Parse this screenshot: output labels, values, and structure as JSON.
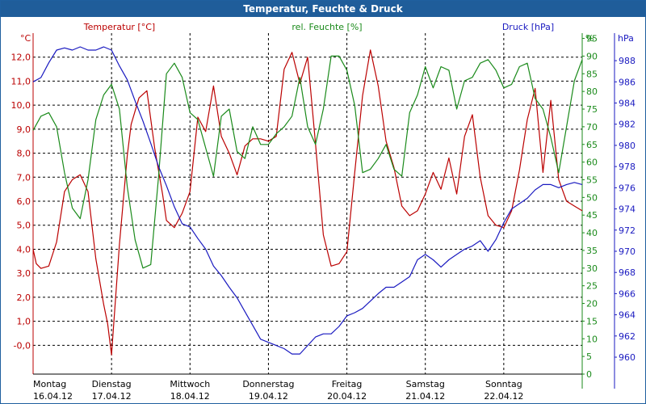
{
  "chart_data": {
    "type": "line",
    "title": "Temperatur, Feuchte & Druck",
    "axes": {
      "temperature": {
        "label": "Temperatur [°C]",
        "unit": "°C",
        "range": [
          -1.2,
          13.0
        ],
        "ticks": [
          "-0,0",
          "1,0",
          "2,0",
          "3,0",
          "4,0",
          "5,0",
          "6,0",
          "7,0",
          "8,0",
          "9,0",
          "10,0",
          "11,0",
          "12,0"
        ]
      },
      "humidity": {
        "label": "rel. Feuchte [%]",
        "unit": "%",
        "range": [
          0,
          96.5
        ],
        "ticks": [
          "0",
          "5",
          "10",
          "15",
          "20",
          "25",
          "30",
          "35",
          "40",
          "45",
          "50",
          "55",
          "60",
          "65",
          "70",
          "75",
          "80",
          "85",
          "90",
          "95"
        ]
      },
      "pressure": {
        "label": "Druck [hPa]",
        "unit": "hPa",
        "range": [
          958.4,
          990.6
        ],
        "ticks": [
          "960",
          "962",
          "964",
          "966",
          "968",
          "970",
          "972",
          "974",
          "976",
          "978",
          "980",
          "982",
          "984",
          "986",
          "988"
        ]
      }
    },
    "x_range": [
      0,
      7
    ],
    "x_labels": [
      {
        "day": "Montag",
        "date": "16.04.12"
      },
      {
        "day": "Dienstag",
        "date": "17.04.12"
      },
      {
        "day": "Mittwoch",
        "date": "18.04.12"
      },
      {
        "day": "Donnerstag",
        "date": "19.04.12"
      },
      {
        "day": "Freitag",
        "date": "20.04.12"
      },
      {
        "day": "Samstag",
        "date": "21.04.12"
      },
      {
        "day": "Sonntag",
        "date": "22.04.12"
      }
    ],
    "grid": true,
    "series": [
      {
        "name": "Temperatur",
        "axis": "temperature",
        "color": "#bb0000",
        "x": [
          0,
          0.04,
          0.1,
          0.2,
          0.3,
          0.4,
          0.5,
          0.6,
          0.7,
          0.8,
          0.9,
          0.95,
          1.0,
          1.1,
          1.2,
          1.25,
          1.35,
          1.45,
          1.55,
          1.65,
          1.7,
          1.8,
          1.9,
          2.0,
          2.1,
          2.2,
          2.3,
          2.4,
          2.5,
          2.6,
          2.7,
          2.8,
          2.9,
          3.0,
          3.1,
          3.2,
          3.3,
          3.4,
          3.5,
          3.6,
          3.7,
          3.8,
          3.9,
          4.0,
          4.1,
          4.2,
          4.3,
          4.4,
          4.5,
          4.6,
          4.7,
          4.8,
          4.9,
          5.0,
          5.1,
          5.2,
          5.3,
          5.4,
          5.5,
          5.6,
          5.7,
          5.8,
          5.9,
          6.0,
          6.1,
          6.2,
          6.3,
          6.4,
          6.5,
          6.6,
          6.7,
          6.8,
          6.9,
          7.0
        ],
        "values": [
          4.0,
          3.4,
          3.2,
          3.3,
          4.3,
          6.4,
          6.9,
          7.1,
          6.4,
          3.6,
          1.7,
          0.9,
          -0.4,
          4.2,
          7.9,
          9.2,
          10.3,
          10.6,
          8.2,
          6.3,
          5.2,
          4.9,
          5.5,
          6.4,
          9.5,
          8.9,
          10.8,
          8.7,
          8.0,
          7.1,
          8.3,
          8.6,
          8.6,
          8.5,
          8.7,
          11.5,
          12.2,
          10.9,
          12.0,
          8.4,
          4.6,
          3.3,
          3.4,
          3.9,
          7.2,
          10.4,
          12.3,
          10.8,
          8.5,
          7.4,
          5.8,
          5.4,
          5.6,
          6.3,
          7.2,
          6.5,
          7.8,
          6.3,
          8.7,
          9.6,
          7.0,
          5.4,
          5.0,
          4.9,
          5.6,
          7.3,
          9.4,
          10.7,
          7.2,
          10.2,
          6.9,
          6.0,
          5.8,
          5.6
        ]
      },
      {
        "name": "rel. Feuchte",
        "axis": "humidity",
        "color": "#1a8a1a",
        "x": [
          0,
          0.1,
          0.2,
          0.3,
          0.4,
          0.5,
          0.6,
          0.7,
          0.8,
          0.9,
          1.0,
          1.1,
          1.2,
          1.3,
          1.4,
          1.5,
          1.6,
          1.7,
          1.8,
          1.9,
          2.0,
          2.1,
          2.2,
          2.3,
          2.4,
          2.5,
          2.6,
          2.7,
          2.8,
          2.9,
          3.0,
          3.1,
          3.2,
          3.3,
          3.4,
          3.5,
          3.6,
          3.7,
          3.8,
          3.9,
          4.0,
          4.1,
          4.2,
          4.3,
          4.4,
          4.5,
          4.6,
          4.7,
          4.8,
          4.9,
          5.0,
          5.1,
          5.2,
          5.3,
          5.4,
          5.5,
          5.6,
          5.7,
          5.8,
          5.9,
          6.0,
          6.1,
          6.2,
          6.3,
          6.4,
          6.5,
          6.6,
          6.7,
          6.8,
          6.9,
          7.0
        ],
        "values": [
          69,
          73,
          74,
          70,
          57,
          47,
          44,
          55,
          72,
          79,
          82,
          75,
          53,
          38,
          30,
          31,
          56,
          85,
          88,
          84,
          74,
          72,
          64,
          56,
          73,
          75,
          63,
          61,
          70,
          65,
          65,
          68,
          70,
          73,
          84,
          70,
          65,
          75,
          90,
          90,
          86,
          76,
          57,
          58,
          61,
          65,
          58,
          56,
          74,
          79,
          87,
          81,
          87,
          86,
          75,
          83,
          84,
          88,
          89,
          86,
          81,
          82,
          87,
          88,
          78,
          75,
          67,
          57,
          70,
          83,
          89
        ]
      },
      {
        "name": "Druck",
        "axis": "pressure",
        "color": "#1a1ac0",
        "x": [
          0,
          0.1,
          0.2,
          0.3,
          0.4,
          0.5,
          0.6,
          0.7,
          0.8,
          0.9,
          1.0,
          1.1,
          1.2,
          1.3,
          1.4,
          1.5,
          1.6,
          1.7,
          1.8,
          1.9,
          2.0,
          2.1,
          2.2,
          2.3,
          2.4,
          2.5,
          2.6,
          2.7,
          2.8,
          2.9,
          3.0,
          3.1,
          3.2,
          3.3,
          3.4,
          3.5,
          3.6,
          3.7,
          3.8,
          3.9,
          4.0,
          4.1,
          4.2,
          4.3,
          4.4,
          4.5,
          4.6,
          4.7,
          4.8,
          4.9,
          5.0,
          5.1,
          5.2,
          5.3,
          5.4,
          5.5,
          5.6,
          5.7,
          5.8,
          5.9,
          6.0,
          6.1,
          6.2,
          6.3,
          6.4,
          6.5,
          6.6,
          6.7,
          6.8,
          6.9,
          7.0
        ],
        "values": [
          986.0,
          986.4,
          987.8,
          989.0,
          989.2,
          989.0,
          989.3,
          989.0,
          989.0,
          989.3,
          989.0,
          987.5,
          986.2,
          984.2,
          982.3,
          980.2,
          978.0,
          976.2,
          974.2,
          972.6,
          972.3,
          971.2,
          970.2,
          968.6,
          967.7,
          966.6,
          965.6,
          964.3,
          963.0,
          961.7,
          961.4,
          961.1,
          960.8,
          960.3,
          960.3,
          961.1,
          961.9,
          962.2,
          962.2,
          962.9,
          963.9,
          964.2,
          964.6,
          965.3,
          966.0,
          966.6,
          966.6,
          967.1,
          967.6,
          969.2,
          969.7,
          969.2,
          968.5,
          969.2,
          969.7,
          970.2,
          970.5,
          971.0,
          970.0,
          971.1,
          972.7,
          974.0,
          974.5,
          975.0,
          975.8,
          976.3,
          976.3,
          976.0,
          976.3,
          976.5,
          976.3
        ]
      }
    ]
  }
}
